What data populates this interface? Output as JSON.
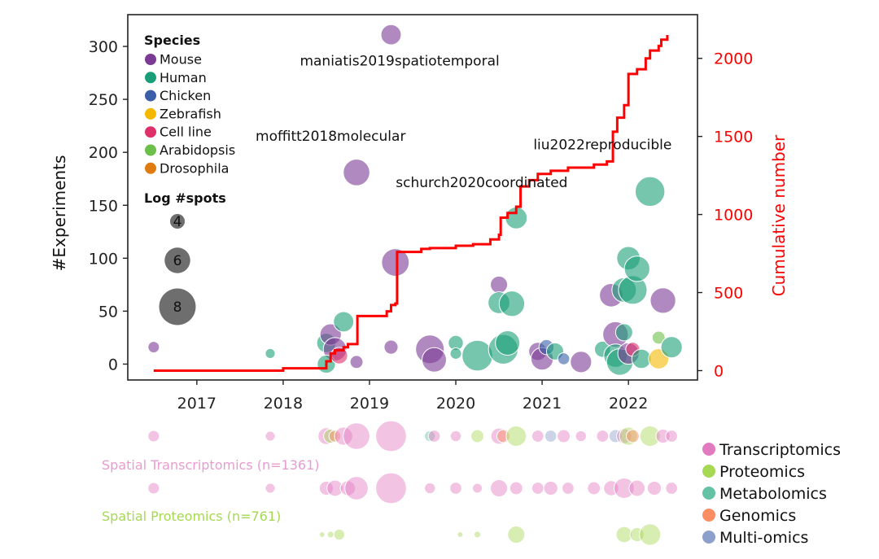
{
  "chart_data": {
    "type": "scatter",
    "xlabel": "",
    "ylabel": "#Experiments",
    "y2label": "Cumulative number",
    "xlim": [
      2016.2,
      2022.8
    ],
    "ylim": [
      -15,
      330
    ],
    "y2lim": [
      -60,
      2280
    ],
    "xticks": [
      2017,
      2018,
      2019,
      2020,
      2021,
      2022
    ],
    "yticks": [
      0,
      50,
      100,
      150,
      200,
      250,
      300
    ],
    "y2ticks": [
      0,
      500,
      1000,
      1500,
      2000
    ],
    "colors": {
      "Mouse": "#7b3a96",
      "Human": "#1a9e77",
      "Chicken": "#3a5fa8",
      "Zebrafish": "#f5b800",
      "Cell line": "#e0306a",
      "Arabidopsis": "#6cbf4a",
      "Drosophila": "#e07b12",
      "cumulative": "#ff0000",
      "Transcriptomics": "#e27ac0",
      "Proteomics": "#a6d854",
      "Metabolomics": "#66c2a5",
      "Genomics": "#fc8d62",
      "Multi-omics": "#8da0cb"
    },
    "species_legend": {
      "title": "Species",
      "entries": [
        "Mouse",
        "Human",
        "Chicken",
        "Zebrafish",
        "Cell line",
        "Arabidopsis",
        "Drosophila"
      ]
    },
    "size_legend": {
      "title": "Log #spots",
      "entries": [
        {
          "label": "4",
          "value": 4
        },
        {
          "label": "6",
          "value": 6
        },
        {
          "label": "8",
          "value": 8
        }
      ]
    },
    "annotations": [
      {
        "text": "maniatis2019spatiotemporal",
        "x": 2019.35,
        "y": 282
      },
      {
        "text": "moffitt2018molecular",
        "x": 2018.55,
        "y": 211
      },
      {
        "text": "schurch2020coordinated",
        "x": 2020.3,
        "y": 167
      },
      {
        "text": "liu2022reproducible",
        "x": 2021.7,
        "y": 203
      }
    ],
    "points": [
      {
        "x": 2016.5,
        "y": 16,
        "species": "Mouse",
        "logspots": 3.5
      },
      {
        "x": 2017.85,
        "y": 10,
        "species": "Human",
        "logspots": 3.2
      },
      {
        "x": 2018.5,
        "y": 20,
        "species": "Human",
        "logspots": 5.0
      },
      {
        "x": 2018.55,
        "y": 28,
        "species": "Mouse",
        "logspots": 5.4
      },
      {
        "x": 2018.6,
        "y": 14,
        "species": "Mouse",
        "logspots": 5.8
      },
      {
        "x": 2018.7,
        "y": 40,
        "species": "Human",
        "logspots": 5.2
      },
      {
        "x": 2018.5,
        "y": 0,
        "species": "Human",
        "logspots": 4.8
      },
      {
        "x": 2018.65,
        "y": 8,
        "species": "Cell line",
        "logspots": 4.5
      },
      {
        "x": 2018.85,
        "y": 181,
        "species": "Mouse",
        "logspots": 6.4
      },
      {
        "x": 2018.85,
        "y": 2,
        "species": "Mouse",
        "logspots": 3.8
      },
      {
        "x": 2019.25,
        "y": 311,
        "species": "Mouse",
        "logspots": 5.2
      },
      {
        "x": 2019.25,
        "y": 16,
        "species": "Mouse",
        "logspots": 4.0
      },
      {
        "x": 2019.3,
        "y": 96,
        "species": "Mouse",
        "logspots": 6.6
      },
      {
        "x": 2019.7,
        "y": 14,
        "species": "Mouse",
        "logspots": 6.8
      },
      {
        "x": 2019.75,
        "y": 4,
        "species": "Mouse",
        "logspots": 6.0
      },
      {
        "x": 2020.0,
        "y": 20,
        "species": "Human",
        "logspots": 4.2
      },
      {
        "x": 2020.0,
        "y": 10,
        "species": "Human",
        "logspots": 3.5
      },
      {
        "x": 2020.25,
        "y": 8,
        "species": "Human",
        "logspots": 7.2
      },
      {
        "x": 2020.5,
        "y": 75,
        "species": "Mouse",
        "logspots": 4.6
      },
      {
        "x": 2020.5,
        "y": 58,
        "species": "Human",
        "logspots": 5.5
      },
      {
        "x": 2020.55,
        "y": 14,
        "species": "Human",
        "logspots": 7.0
      },
      {
        "x": 2020.6,
        "y": 20,
        "species": "Human",
        "logspots": 6.0
      },
      {
        "x": 2020.65,
        "y": 57,
        "species": "Human",
        "logspots": 6.2
      },
      {
        "x": 2020.7,
        "y": 138,
        "species": "Human",
        "logspots": 5.5
      },
      {
        "x": 2020.95,
        "y": 12,
        "species": "Mouse",
        "logspots": 4.8
      },
      {
        "x": 2021.0,
        "y": 5,
        "species": "Mouse",
        "logspots": 5.6
      },
      {
        "x": 2021.05,
        "y": 16,
        "species": "Chicken",
        "logspots": 4.2
      },
      {
        "x": 2021.15,
        "y": 12,
        "species": "Human",
        "logspots": 4.6
      },
      {
        "x": 2021.25,
        "y": 5,
        "species": "Chicken",
        "logspots": 3.6
      },
      {
        "x": 2021.45,
        "y": 2,
        "species": "Mouse",
        "logspots": 5.4
      },
      {
        "x": 2021.7,
        "y": 14,
        "species": "Human",
        "logspots": 4.4
      },
      {
        "x": 2021.8,
        "y": 65,
        "species": "Mouse",
        "logspots": 5.8
      },
      {
        "x": 2021.85,
        "y": 28,
        "species": "Mouse",
        "logspots": 6.2
      },
      {
        "x": 2021.85,
        "y": 8,
        "species": "Human",
        "logspots": 5.8
      },
      {
        "x": 2021.9,
        "y": 2,
        "species": "Human",
        "logspots": 6.4
      },
      {
        "x": 2021.95,
        "y": 70,
        "species": "Human",
        "logspots": 6.0
      },
      {
        "x": 2021.95,
        "y": 30,
        "species": "Human",
        "logspots": 4.6
      },
      {
        "x": 2022.0,
        "y": 100,
        "species": "Human",
        "logspots": 5.8
      },
      {
        "x": 2022.0,
        "y": 10,
        "species": "Mouse",
        "logspots": 5.4
      },
      {
        "x": 2022.05,
        "y": 14,
        "species": "Cell line",
        "logspots": 4.0
      },
      {
        "x": 2022.05,
        "y": 70,
        "species": "Human",
        "logspots": 6.8
      },
      {
        "x": 2022.1,
        "y": 90,
        "species": "Human",
        "logspots": 6.2
      },
      {
        "x": 2022.15,
        "y": 5,
        "species": "Human",
        "logspots": 5.0
      },
      {
        "x": 2022.25,
        "y": 163,
        "species": "Human",
        "logspots": 7.0
      },
      {
        "x": 2022.35,
        "y": 25,
        "species": "Arabidopsis",
        "logspots": 3.8
      },
      {
        "x": 2022.35,
        "y": 5,
        "species": "Zebrafish",
        "logspots": 5.2
      },
      {
        "x": 2022.4,
        "y": 60,
        "species": "Mouse",
        "logspots": 6.2
      },
      {
        "x": 2022.5,
        "y": 16,
        "species": "Human",
        "logspots": 5.4
      }
    ],
    "cumulative": [
      [
        2016.5,
        0
      ],
      [
        2018.0,
        15
      ],
      [
        2018.5,
        60
      ],
      [
        2018.55,
        110
      ],
      [
        2018.6,
        130
      ],
      [
        2018.7,
        150
      ],
      [
        2018.75,
        170
      ],
      [
        2018.85,
        170
      ],
      [
        2018.86,
        350
      ],
      [
        2019.2,
        380
      ],
      [
        2019.25,
        420
      ],
      [
        2019.3,
        430
      ],
      [
        2019.32,
        760
      ],
      [
        2019.6,
        780
      ],
      [
        2019.7,
        785
      ],
      [
        2020.0,
        800
      ],
      [
        2020.2,
        810
      ],
      [
        2020.4,
        840
      ],
      [
        2020.5,
        870
      ],
      [
        2020.52,
        980
      ],
      [
        2020.6,
        1010
      ],
      [
        2020.7,
        1050
      ],
      [
        2020.75,
        1180
      ],
      [
        2020.85,
        1220
      ],
      [
        2020.95,
        1260
      ],
      [
        2021.1,
        1280
      ],
      [
        2021.3,
        1300
      ],
      [
        2021.6,
        1320
      ],
      [
        2021.75,
        1340
      ],
      [
        2021.82,
        1530
      ],
      [
        2021.87,
        1620
      ],
      [
        2021.95,
        1700
      ],
      [
        2022.0,
        1900
      ],
      [
        2022.1,
        1930
      ],
      [
        2022.2,
        2000
      ],
      [
        2022.25,
        2050
      ],
      [
        2022.35,
        2080
      ],
      [
        2022.38,
        2120
      ],
      [
        2022.45,
        2150
      ]
    ],
    "omics_legend": [
      "Transcriptomics",
      "Proteomics",
      "Metabolomics",
      "Genomics",
      "Multi-omics"
    ],
    "strips": [
      {
        "label": "",
        "points": [
          {
            "x": 2016.5,
            "omics": "Transcriptomics",
            "size": 3.5
          },
          {
            "x": 2017.85,
            "omics": "Transcriptomics",
            "size": 3.2
          },
          {
            "x": 2018.5,
            "omics": "Transcriptomics",
            "size": 4.5
          },
          {
            "x": 2018.55,
            "omics": "Proteomics",
            "size": 4.0
          },
          {
            "x": 2018.6,
            "omics": "Genomics",
            "size": 3.6
          },
          {
            "x": 2018.7,
            "omics": "Transcriptomics",
            "size": 4.8
          },
          {
            "x": 2018.85,
            "omics": "Transcriptomics",
            "size": 6.4
          },
          {
            "x": 2019.25,
            "omics": "Transcriptomics",
            "size": 7.2
          },
          {
            "x": 2019.7,
            "omics": "Metabolomics",
            "size": 3.4
          },
          {
            "x": 2019.75,
            "omics": "Transcriptomics",
            "size": 3.6
          },
          {
            "x": 2020.0,
            "omics": "Transcriptomics",
            "size": 3.4
          },
          {
            "x": 2020.25,
            "omics": "Proteomics",
            "size": 3.8
          },
          {
            "x": 2020.5,
            "omics": "Transcriptomics",
            "size": 4.4
          },
          {
            "x": 2020.55,
            "omics": "Genomics",
            "size": 3.8
          },
          {
            "x": 2020.7,
            "omics": "Proteomics",
            "size": 5.2
          },
          {
            "x": 2020.95,
            "omics": "Transcriptomics",
            "size": 3.6
          },
          {
            "x": 2021.1,
            "omics": "Multi-omics",
            "size": 3.6
          },
          {
            "x": 2021.25,
            "omics": "Transcriptomics",
            "size": 3.8
          },
          {
            "x": 2021.45,
            "omics": "Transcriptomics",
            "size": 3.4
          },
          {
            "x": 2021.7,
            "omics": "Transcriptomics",
            "size": 3.6
          },
          {
            "x": 2021.85,
            "omics": "Multi-omics",
            "size": 3.8
          },
          {
            "x": 2021.95,
            "omics": "Transcriptomics",
            "size": 4.2
          },
          {
            "x": 2022.0,
            "omics": "Proteomics",
            "size": 4.8
          },
          {
            "x": 2022.05,
            "omics": "Genomics",
            "size": 3.8
          },
          {
            "x": 2022.25,
            "omics": "Proteomics",
            "size": 5.2
          },
          {
            "x": 2022.4,
            "omics": "Transcriptomics",
            "size": 4.0
          },
          {
            "x": 2022.5,
            "omics": "Transcriptomics",
            "size": 3.6
          }
        ]
      },
      {
        "label": "Spatial Transcriptomics (n=1361)",
        "points": [
          {
            "x": 2016.5,
            "omics": "Transcriptomics",
            "size": 3.5
          },
          {
            "x": 2017.85,
            "omics": "Transcriptomics",
            "size": 3.2
          },
          {
            "x": 2018.5,
            "omics": "Transcriptomics",
            "size": 4.0
          },
          {
            "x": 2018.6,
            "omics": "Transcriptomics",
            "size": 4.4
          },
          {
            "x": 2018.75,
            "omics": "Transcriptomics",
            "size": 4.2
          },
          {
            "x": 2018.85,
            "omics": "Transcriptomics",
            "size": 5.8
          },
          {
            "x": 2019.25,
            "omics": "Transcriptomics",
            "size": 7.2
          },
          {
            "x": 2019.7,
            "omics": "Transcriptomics",
            "size": 3.4
          },
          {
            "x": 2020.0,
            "omics": "Transcriptomics",
            "size": 3.6
          },
          {
            "x": 2020.25,
            "omics": "Transcriptomics",
            "size": 3.2
          },
          {
            "x": 2020.5,
            "omics": "Transcriptomics",
            "size": 4.6
          },
          {
            "x": 2020.7,
            "omics": "Transcriptomics",
            "size": 3.8
          },
          {
            "x": 2020.95,
            "omics": "Transcriptomics",
            "size": 3.6
          },
          {
            "x": 2021.1,
            "omics": "Transcriptomics",
            "size": 4.0
          },
          {
            "x": 2021.3,
            "omics": "Transcriptomics",
            "size": 3.6
          },
          {
            "x": 2021.6,
            "omics": "Transcriptomics",
            "size": 3.8
          },
          {
            "x": 2021.8,
            "omics": "Transcriptomics",
            "size": 4.2
          },
          {
            "x": 2021.95,
            "omics": "Transcriptomics",
            "size": 5.2
          },
          {
            "x": 2022.1,
            "omics": "Transcriptomics",
            "size": 4.4
          },
          {
            "x": 2022.3,
            "omics": "Transcriptomics",
            "size": 4.0
          },
          {
            "x": 2022.5,
            "omics": "Transcriptomics",
            "size": 3.6
          }
        ]
      },
      {
        "label": "Spatial Proteomics (n=761)",
        "points": [
          {
            "x": 2018.45,
            "omics": "Proteomics",
            "size": 2.4
          },
          {
            "x": 2018.55,
            "omics": "Proteomics",
            "size": 2.6
          },
          {
            "x": 2018.65,
            "omics": "Proteomics",
            "size": 3.4
          },
          {
            "x": 2020.05,
            "omics": "Proteomics",
            "size": 2.4
          },
          {
            "x": 2020.25,
            "omics": "Proteomics",
            "size": 2.6
          },
          {
            "x": 2020.7,
            "omics": "Proteomics",
            "size": 4.6
          },
          {
            "x": 2021.95,
            "omics": "Proteomics",
            "size": 4.4
          },
          {
            "x": 2022.1,
            "omics": "Proteomics",
            "size": 4.0
          },
          {
            "x": 2022.25,
            "omics": "Proteomics",
            "size": 5.4
          }
        ]
      }
    ]
  }
}
